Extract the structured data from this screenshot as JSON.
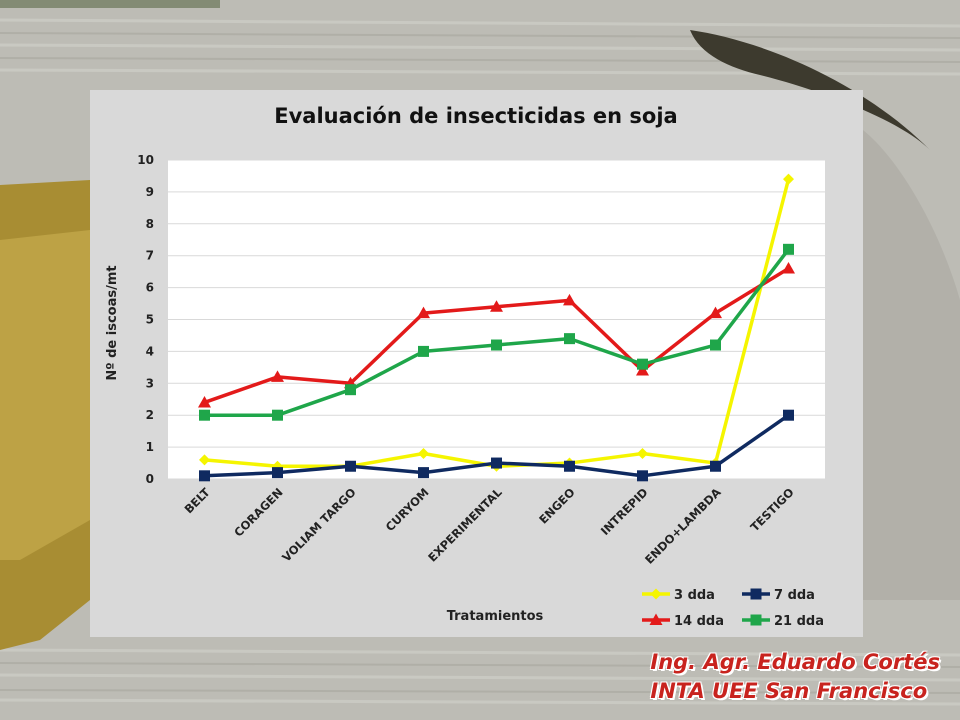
{
  "chart_data": {
    "type": "line",
    "title": "Evaluación de insecticidas en soja",
    "xlabel": "Tratamientos",
    "ylabel": "Nº de iscoas/mt",
    "ylim": [
      0,
      10
    ],
    "yticks": [
      0,
      1,
      2,
      3,
      4,
      5,
      6,
      7,
      8,
      9,
      10
    ],
    "grid": true,
    "legend_position": "bottom-right",
    "categories": [
      "BELT",
      "CORAGEN",
      "VOLIAM TARGO",
      "CURYOM",
      "EXPERIMENTAL",
      "ENGEO",
      "INTREPID",
      "ENDO+LAMBDA",
      "TESTIGO"
    ],
    "series": [
      {
        "name": "3 dda",
        "color": "#f5f500",
        "marker": "diamond",
        "values": [
          0.6,
          0.4,
          0.4,
          0.8,
          0.4,
          0.5,
          0.8,
          0.5,
          9.4
        ]
      },
      {
        "name": "7 dda",
        "color": "#0f2a60",
        "marker": "square",
        "values": [
          0.1,
          0.2,
          0.4,
          0.2,
          0.5,
          0.4,
          0.1,
          0.4,
          2.0
        ]
      },
      {
        "name": "14 dda",
        "color": "#e31a1a",
        "marker": "triangle",
        "values": [
          2.4,
          3.2,
          3.0,
          5.2,
          5.4,
          5.6,
          3.4,
          5.2,
          6.6
        ]
      },
      {
        "name": "21 dda",
        "color": "#1fa64a",
        "marker": "square",
        "values": [
          2.0,
          2.0,
          2.8,
          4.0,
          4.2,
          4.4,
          3.6,
          4.2,
          7.2
        ]
      }
    ]
  },
  "credit": {
    "line1": "Ing. Agr. Eduardo Cortés",
    "line2": "INTA UEE San Francisco"
  }
}
